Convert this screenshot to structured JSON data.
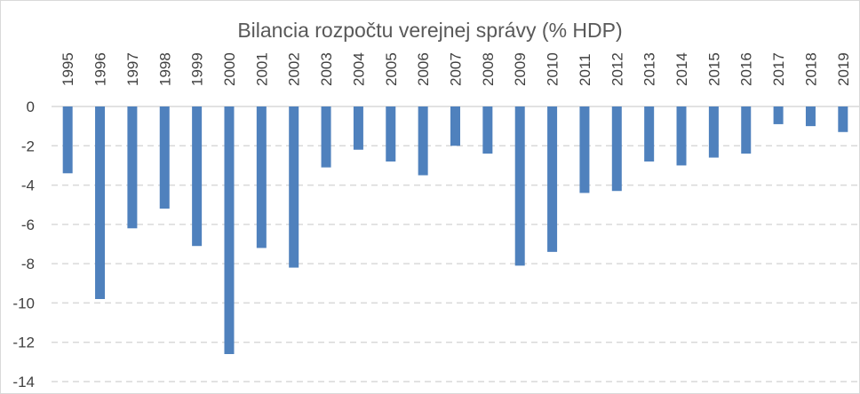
{
  "chart_data": {
    "type": "bar",
    "title": "Bilancia rozpočtu verejnej správy (% HDP)",
    "categories": [
      "1995",
      "1996",
      "1997",
      "1998",
      "1999",
      "2000",
      "2001",
      "2002",
      "2003",
      "2004",
      "2005",
      "2006",
      "2007",
      "2008",
      "2009",
      "2010",
      "2011",
      "2012",
      "2013",
      "2014",
      "2015",
      "2016",
      "2017",
      "2018",
      "2019"
    ],
    "values": [
      -3.4,
      -9.8,
      -6.2,
      -5.2,
      -7.1,
      -12.6,
      -7.2,
      -8.2,
      -3.1,
      -2.2,
      -2.8,
      -3.5,
      -2.0,
      -2.4,
      -8.1,
      -7.4,
      -4.4,
      -4.3,
      -2.8,
      -3.0,
      -2.6,
      -2.4,
      -0.9,
      -1.0,
      -1.3
    ],
    "yticks": [
      "0",
      "-2",
      "-4",
      "-6",
      "-8",
      "-10",
      "-12",
      "-14"
    ],
    "ylim": [
      -14,
      0
    ],
    "xlabel": "",
    "ylabel": "",
    "grid": true,
    "legend": "none",
    "bar_color": "#4f81bd",
    "grid_color": "#d9d9d9",
    "text_color": "#404040",
    "title_color": "#595959"
  }
}
